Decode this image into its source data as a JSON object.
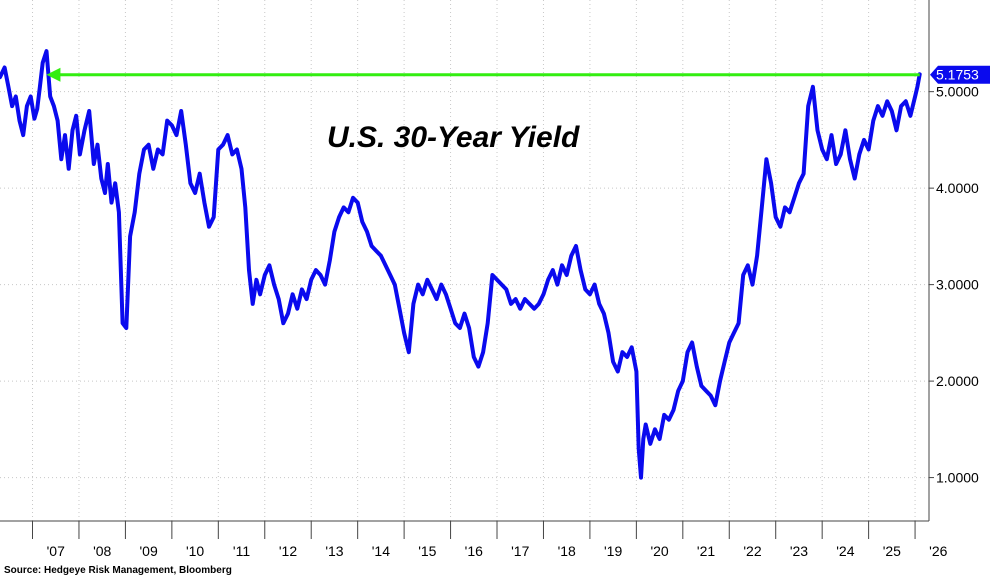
{
  "chart_data": {
    "type": "line",
    "title": "U.S. 30-Year Yield",
    "source": "Source: Hedgeye Risk Management, Bloomberg",
    "x_tick_labels": [
      "'07",
      "'08",
      "'09",
      "'10",
      "'11",
      "'12",
      "'13",
      "'14",
      "'15",
      "'16",
      "'17",
      "'18",
      "'19",
      "'20",
      "'21",
      "'22",
      "'23",
      "'24",
      "'25",
      "'26"
    ],
    "y_tick_labels": [
      "1.0000",
      "2.0000",
      "3.0000",
      "4.0000",
      "5.0000"
    ],
    "y_ticks": [
      1,
      2,
      3,
      4,
      5
    ],
    "xlim": [
      2006.3,
      2026.3
    ],
    "ylim": [
      0.55,
      5.95
    ],
    "grid": true,
    "last_value": 5.1753,
    "last_value_label": "5.1753",
    "series_color": "#0a0aee",
    "reference_line": {
      "y": 5.1753,
      "x_start": 2007.3,
      "x_end": 2026.1,
      "color": "#33ee11",
      "arrow": "left"
    },
    "series": [
      {
        "x": [
          2006.3,
          2006.4,
          2006.48,
          2006.56,
          2006.64,
          2006.72,
          2006.8,
          2006.88,
          2006.96,
          2007.04,
          2007.1,
          2007.16,
          2007.22,
          2007.3,
          2007.38,
          2007.46,
          2007.54,
          2007.62,
          2007.7,
          2007.78,
          2007.86,
          2007.94,
          2008.02,
          2008.12,
          2008.22,
          2008.32,
          2008.4,
          2008.48,
          2008.56,
          2008.62,
          2008.7,
          2008.78,
          2008.86,
          2008.94,
          2009.02,
          2009.1,
          2009.2,
          2009.3,
          2009.4,
          2009.5,
          2009.6,
          2009.7,
          2009.8,
          2009.9,
          2010.0,
          2010.1,
          2010.2,
          2010.3,
          2010.4,
          2010.5,
          2010.6,
          2010.7,
          2010.8,
          2010.9,
          2011.0,
          2011.1,
          2011.2,
          2011.3,
          2011.4,
          2011.5,
          2011.58,
          2011.66,
          2011.74,
          2011.82,
          2011.9,
          2012.0,
          2012.1,
          2012.2,
          2012.3,
          2012.4,
          2012.5,
          2012.6,
          2012.7,
          2012.8,
          2012.9,
          2013.0,
          2013.1,
          2013.2,
          2013.3,
          2013.4,
          2013.5,
          2013.6,
          2013.7,
          2013.8,
          2013.9,
          2014.0,
          2014.1,
          2014.2,
          2014.3,
          2014.4,
          2014.5,
          2014.6,
          2014.7,
          2014.8,
          2014.9,
          2015.0,
          2015.1,
          2015.2,
          2015.3,
          2015.4,
          2015.5,
          2015.6,
          2015.7,
          2015.8,
          2015.9,
          2016.0,
          2016.1,
          2016.2,
          2016.3,
          2016.4,
          2016.5,
          2016.6,
          2016.7,
          2016.8,
          2016.9,
          2017.0,
          2017.1,
          2017.2,
          2017.3,
          2017.4,
          2017.5,
          2017.6,
          2017.7,
          2017.8,
          2017.9,
          2018.0,
          2018.1,
          2018.2,
          2018.3,
          2018.4,
          2018.5,
          2018.6,
          2018.7,
          2018.8,
          2018.9,
          2019.0,
          2019.1,
          2019.2,
          2019.3,
          2019.4,
          2019.5,
          2019.6,
          2019.7,
          2019.8,
          2019.9,
          2020.0,
          2020.05,
          2020.1,
          2020.15,
          2020.2,
          2020.3,
          2020.4,
          2020.5,
          2020.6,
          2020.7,
          2020.8,
          2020.9,
          2021.0,
          2021.1,
          2021.2,
          2021.3,
          2021.4,
          2021.5,
          2021.6,
          2021.7,
          2021.8,
          2021.9,
          2022.0,
          2022.1,
          2022.2,
          2022.3,
          2022.4,
          2022.5,
          2022.6,
          2022.7,
          2022.8,
          2022.9,
          2023.0,
          2023.1,
          2023.2,
          2023.3,
          2023.4,
          2023.5,
          2023.6,
          2023.7,
          2023.8,
          2023.9,
          2024.0,
          2024.1,
          2024.2,
          2024.3,
          2024.4,
          2024.5,
          2024.6,
          2024.7,
          2024.8,
          2024.9,
          2025.0,
          2025.1,
          2025.2,
          2025.3,
          2025.4,
          2025.5,
          2025.6,
          2025.7,
          2025.8,
          2025.9,
          2026.0,
          2026.05,
          2026.1
        ],
        "y": [
          5.15,
          5.25,
          5.05,
          4.85,
          4.95,
          4.7,
          4.55,
          4.85,
          4.95,
          4.72,
          4.82,
          5.05,
          5.3,
          5.42,
          4.95,
          4.85,
          4.7,
          4.3,
          4.55,
          4.2,
          4.6,
          4.75,
          4.35,
          4.6,
          4.8,
          4.25,
          4.45,
          4.1,
          3.95,
          4.25,
          3.85,
          4.05,
          3.75,
          2.6,
          2.55,
          3.5,
          3.75,
          4.15,
          4.4,
          4.45,
          4.2,
          4.4,
          4.35,
          4.7,
          4.65,
          4.55,
          4.8,
          4.45,
          4.05,
          3.95,
          4.15,
          3.85,
          3.6,
          3.7,
          4.4,
          4.45,
          4.55,
          4.35,
          4.4,
          4.2,
          3.8,
          3.15,
          2.8,
          3.05,
          2.9,
          3.1,
          3.2,
          3.0,
          2.85,
          2.6,
          2.7,
          2.9,
          2.75,
          2.95,
          2.85,
          3.05,
          3.15,
          3.1,
          3.0,
          3.25,
          3.55,
          3.7,
          3.8,
          3.75,
          3.9,
          3.85,
          3.65,
          3.55,
          3.4,
          3.35,
          3.3,
          3.2,
          3.1,
          3.0,
          2.75,
          2.5,
          2.3,
          2.8,
          3.0,
          2.9,
          3.05,
          2.95,
          2.85,
          3.0,
          2.9,
          2.75,
          2.6,
          2.55,
          2.7,
          2.55,
          2.25,
          2.15,
          2.3,
          2.6,
          3.1,
          3.05,
          3.0,
          2.95,
          2.8,
          2.85,
          2.75,
          2.85,
          2.8,
          2.75,
          2.8,
          2.9,
          3.05,
          3.15,
          3.0,
          3.2,
          3.1,
          3.3,
          3.4,
          3.15,
          2.95,
          2.9,
          3.0,
          2.8,
          2.7,
          2.5,
          2.2,
          2.1,
          2.3,
          2.25,
          2.35,
          2.1,
          1.3,
          1.0,
          1.4,
          1.55,
          1.35,
          1.5,
          1.4,
          1.65,
          1.6,
          1.7,
          1.9,
          2.0,
          2.3,
          2.4,
          2.15,
          1.95,
          1.9,
          1.85,
          1.75,
          2.0,
          2.2,
          2.4,
          2.5,
          2.6,
          3.1,
          3.2,
          3.0,
          3.3,
          3.8,
          4.3,
          4.05,
          3.7,
          3.6,
          3.8,
          3.75,
          3.9,
          4.05,
          4.15,
          4.85,
          5.05,
          4.6,
          4.4,
          4.3,
          4.55,
          4.25,
          4.35,
          4.6,
          4.3,
          4.1,
          4.35,
          4.5,
          4.4,
          4.7,
          4.85,
          4.75,
          4.9,
          4.8,
          4.6,
          4.85,
          4.9,
          4.75,
          4.95,
          5.05,
          5.18
        ]
      }
    ]
  }
}
